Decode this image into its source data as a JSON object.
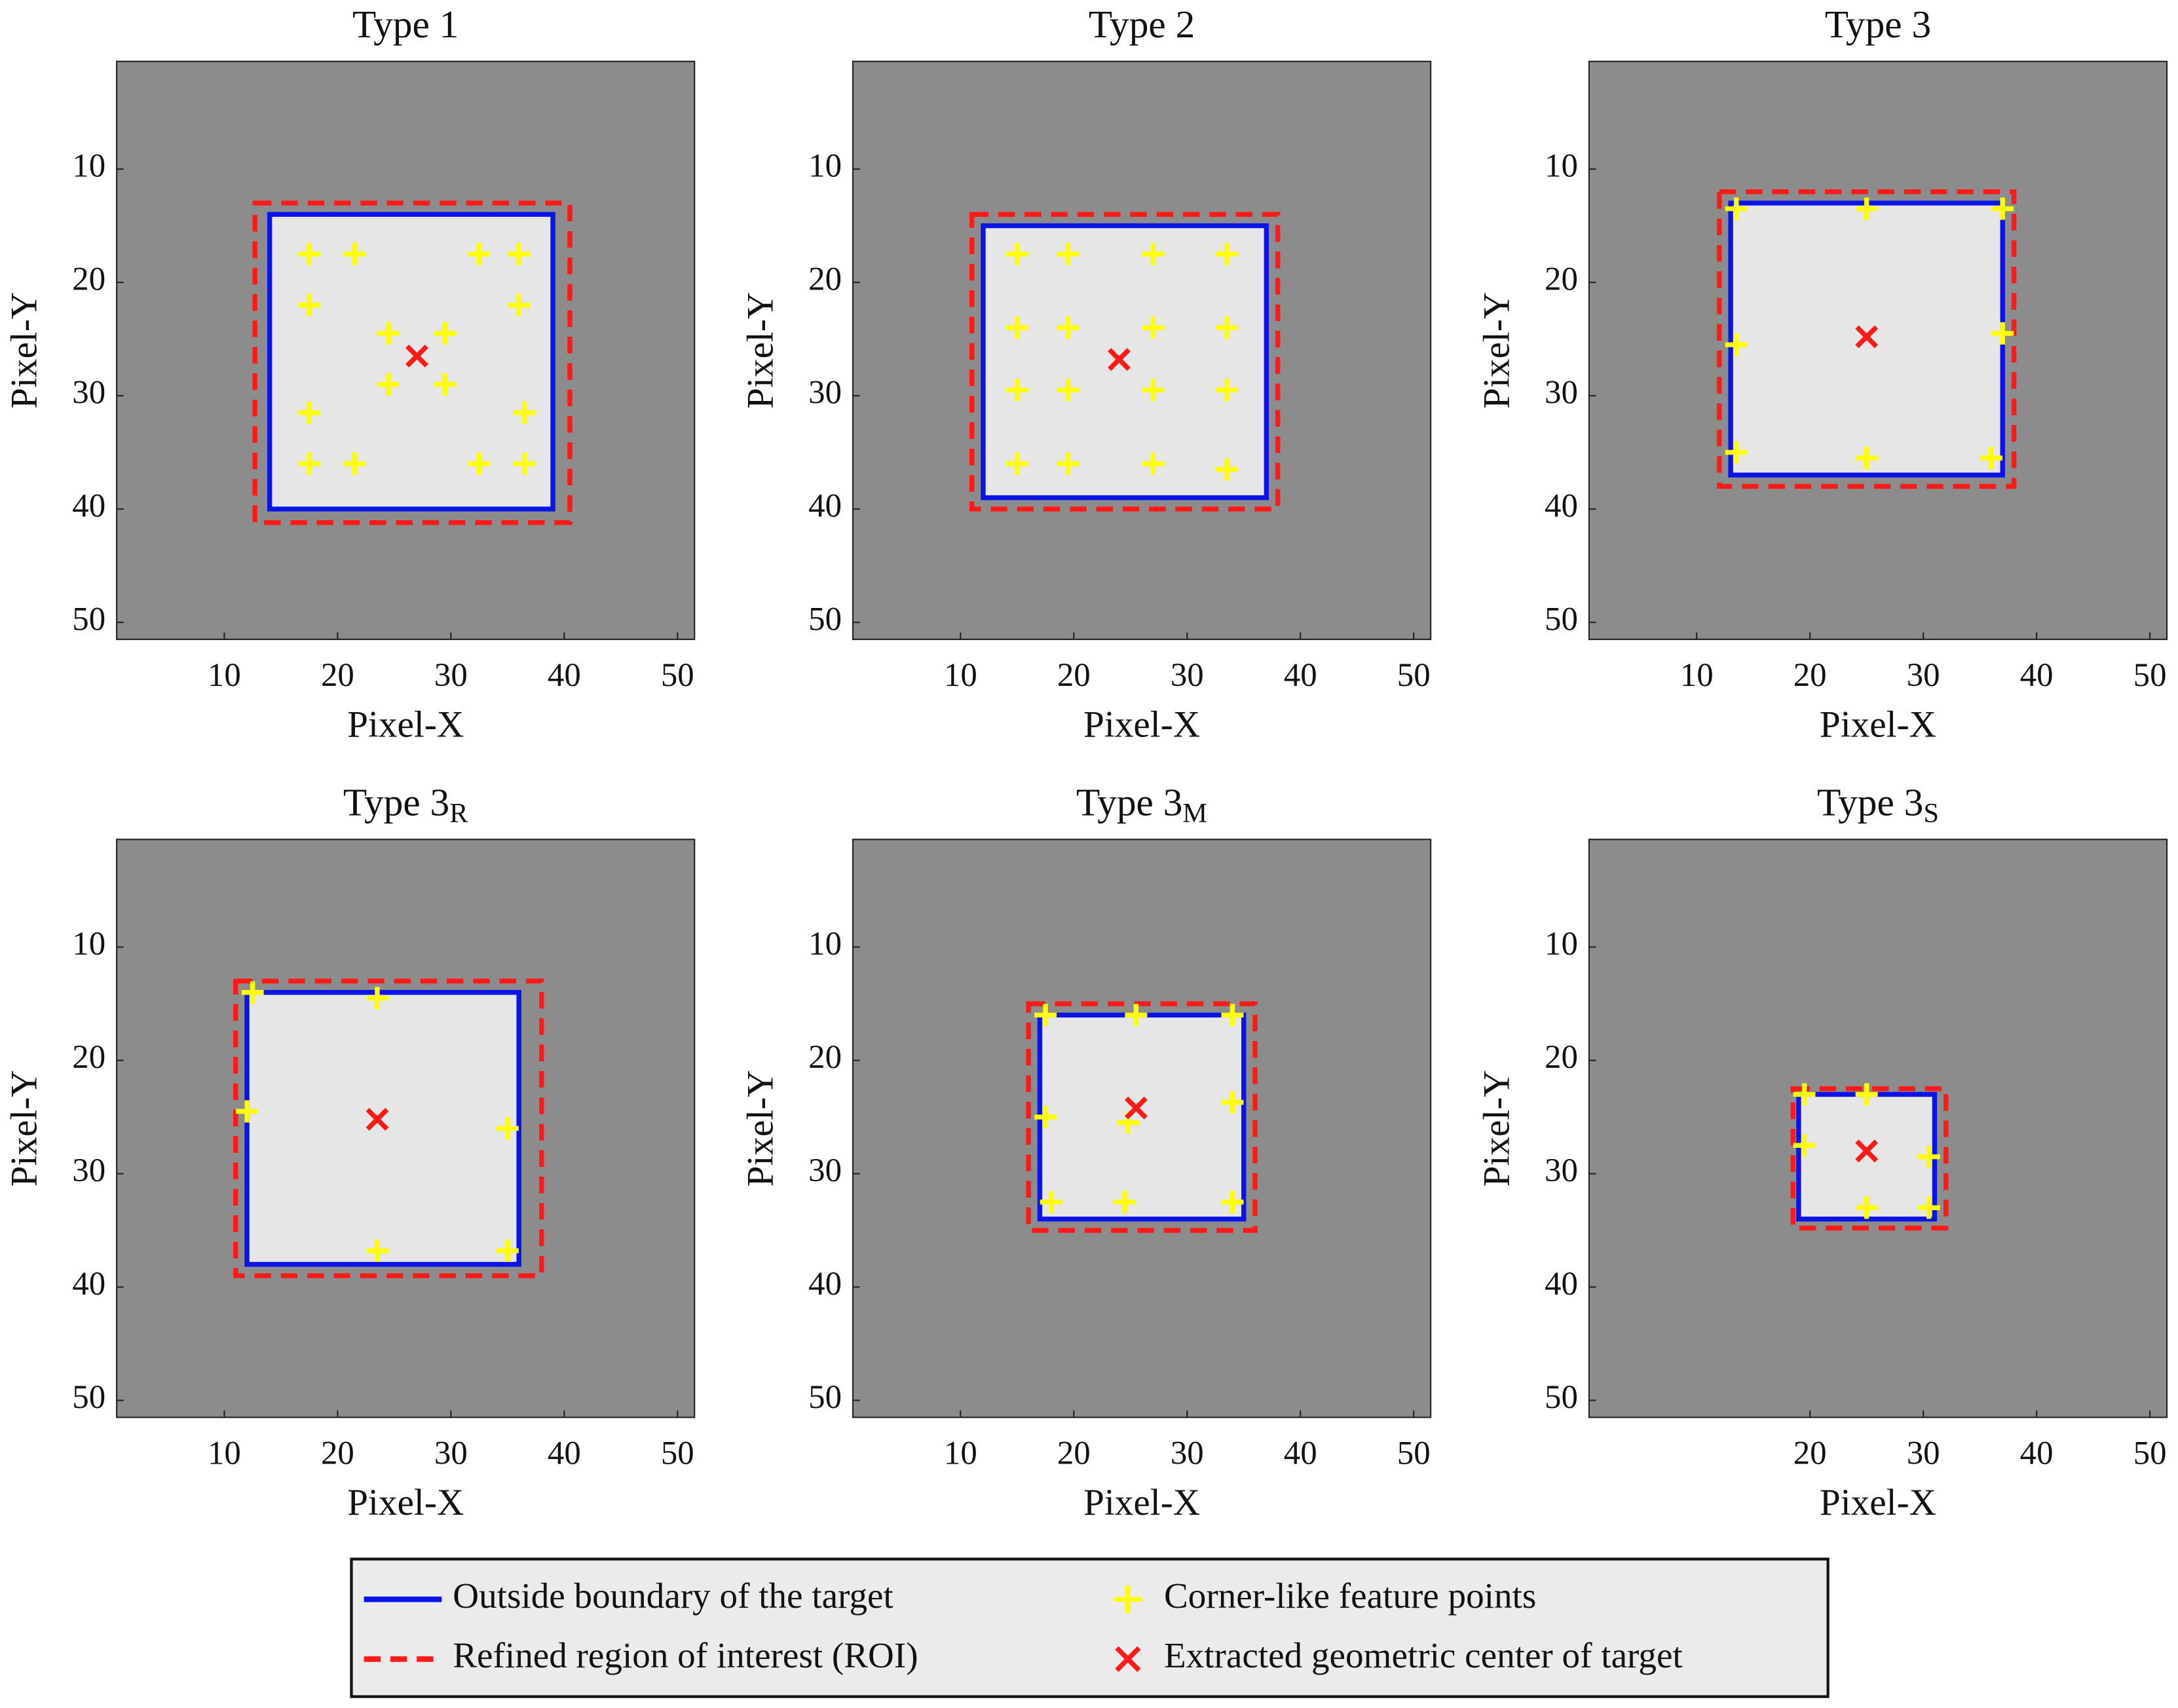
{
  "chart_data": [
    {
      "type": "overlay",
      "title": "Type 1",
      "xlabel": "Pixel-X",
      "ylabel": "Pixel-Y",
      "xlim": [
        0.5,
        51.5
      ],
      "ylim": [
        0.5,
        51.5
      ],
      "y_reversed": true,
      "xticks": [
        10,
        20,
        30,
        40,
        50
      ],
      "yticks": [
        10,
        20,
        30,
        40,
        50
      ],
      "boundary": {
        "x": [
          14,
          39
        ],
        "y": [
          14,
          40
        ]
      },
      "roi": {
        "x": [
          12.7,
          40.5
        ],
        "y": [
          13,
          41.2
        ]
      },
      "corners": {
        "x": [
          17.5,
          21.5,
          17.5,
          32.5,
          36,
          36,
          24.5,
          29.5,
          24.5,
          29.5,
          17.5,
          36.5,
          17.5,
          21.5,
          32.5,
          36.5
        ],
        "y": [
          17.5,
          17.5,
          22,
          17.5,
          17.5,
          22,
          24.5,
          24.5,
          29,
          29,
          31.5,
          31.5,
          36,
          36,
          36,
          36
        ]
      },
      "center": {
        "x": 27,
        "y": 26.5
      }
    },
    {
      "type": "overlay",
      "title": "Type 2",
      "xlabel": "Pixel-X",
      "ylabel": "Pixel-Y",
      "xlim": [
        0.5,
        51.5
      ],
      "ylim": [
        0.5,
        51.5
      ],
      "y_reversed": true,
      "xticks": [
        10,
        20,
        30,
        40,
        50
      ],
      "yticks": [
        10,
        20,
        30,
        40,
        50
      ],
      "boundary": {
        "x": [
          12,
          37
        ],
        "y": [
          15,
          39
        ]
      },
      "roi": {
        "x": [
          11,
          38
        ],
        "y": [
          14,
          40
        ]
      },
      "corners": {
        "x": [
          15,
          19.5,
          15,
          19.5,
          27,
          33.5,
          27,
          33.5,
          15,
          19.5,
          15,
          19.5,
          27,
          33.5,
          27,
          33.5
        ],
        "y": [
          17.5,
          17.5,
          24,
          24,
          17.5,
          17.5,
          24,
          24,
          29.5,
          29.5,
          36,
          36,
          29.5,
          29.5,
          36,
          36.5
        ]
      },
      "center": {
        "x": 24,
        "y": 26.8
      }
    },
    {
      "type": "overlay",
      "title": "Type 3",
      "xlabel": "Pixel-X",
      "ylabel": "Pixel-Y",
      "xlim": [
        0.5,
        51.5
      ],
      "ylim": [
        0.5,
        51.5
      ],
      "y_reversed": true,
      "xticks": [
        10,
        20,
        30,
        40,
        50
      ],
      "yticks": [
        10,
        20,
        30,
        40,
        50
      ],
      "boundary": {
        "x": [
          13,
          37
        ],
        "y": [
          13,
          37
        ]
      },
      "roi": {
        "x": [
          12,
          38
        ],
        "y": [
          12,
          38
        ]
      },
      "corners": {
        "x": [
          13.5,
          25,
          37,
          13.5,
          37,
          13.5,
          25,
          36
        ],
        "y": [
          13.5,
          13.5,
          13.5,
          25.5,
          24.5,
          35,
          35.5,
          35.5
        ]
      },
      "center": {
        "x": 25,
        "y": 24.8
      }
    },
    {
      "type": "overlay",
      "title": "Type 3",
      "title_sub": "R",
      "xlabel": "Pixel-X",
      "ylabel": "Pixel-Y",
      "xlim": [
        0.5,
        51.5
      ],
      "ylim": [
        0.5,
        51.5
      ],
      "y_reversed": true,
      "xticks": [
        10,
        20,
        30,
        40,
        50
      ],
      "yticks": [
        10,
        20,
        30,
        40,
        50
      ],
      "boundary": {
        "x": [
          12,
          36
        ],
        "y": [
          14,
          38
        ]
      },
      "roi": {
        "x": [
          11,
          38
        ],
        "y": [
          13,
          39
        ]
      },
      "corners": {
        "x": [
          12.5,
          23.5,
          12,
          35,
          23.5,
          35
        ],
        "y": [
          14,
          14.5,
          24.5,
          26,
          36.8,
          36.8
        ]
      },
      "center": {
        "x": 23.5,
        "y": 25.2
      }
    },
    {
      "type": "overlay",
      "title": "Type 3",
      "title_sub": "M",
      "xlabel": "Pixel-X",
      "ylabel": "Pixel-Y",
      "xlim": [
        0.5,
        51.5
      ],
      "ylim": [
        0.5,
        51.5
      ],
      "y_reversed": true,
      "xticks": [
        10,
        20,
        30,
        40,
        50
      ],
      "yticks": [
        10,
        20,
        30,
        40,
        50
      ],
      "boundary": {
        "x": [
          17,
          35
        ],
        "y": [
          16,
          34
        ]
      },
      "roi": {
        "x": [
          16,
          36
        ],
        "y": [
          15,
          35
        ]
      },
      "corners": {
        "x": [
          17.5,
          25.5,
          34,
          17.5,
          34,
          24.8,
          18,
          24.5,
          34
        ],
        "y": [
          16,
          16,
          16,
          25,
          23.7,
          25.5,
          32.5,
          32.5,
          32.5
        ]
      },
      "center": {
        "x": 25.5,
        "y": 24.2
      }
    },
    {
      "type": "overlay",
      "title": "Type 3",
      "title_sub": "S",
      "xlabel": "Pixel-X",
      "ylabel": "Pixel-Y",
      "xlim": [
        0.5,
        51.5
      ],
      "ylim": [
        0.5,
        51.5
      ],
      "y_reversed": true,
      "xticks": [
        20,
        30,
        40,
        50
      ],
      "yticks": [
        10,
        20,
        30,
        40,
        50
      ],
      "boundary": {
        "x": [
          19,
          31
        ],
        "y": [
          23,
          34
        ]
      },
      "roi": {
        "x": [
          18.5,
          32
        ],
        "y": [
          22.5,
          34.8
        ]
      },
      "corners": {
        "x": [
          19.5,
          25,
          19.5,
          30.5,
          25,
          30.5
        ],
        "y": [
          23,
          23,
          27.5,
          28.5,
          33,
          33
        ]
      },
      "center": {
        "x": 25,
        "y": 28
      }
    }
  ],
  "legend": [
    {
      "name": "Outside boundary of the target",
      "color": "#0a14e6",
      "marker": "line"
    },
    {
      "name": "Refined region of interest (ROI)",
      "color": "#ff1a1a",
      "marker": "dashed"
    },
    {
      "name": "Corner-like feature points",
      "color": "#ffff00",
      "marker": "plus"
    },
    {
      "name": "Extracted geometric center of target",
      "color": "#ff1a1a",
      "marker": "cross"
    }
  ]
}
